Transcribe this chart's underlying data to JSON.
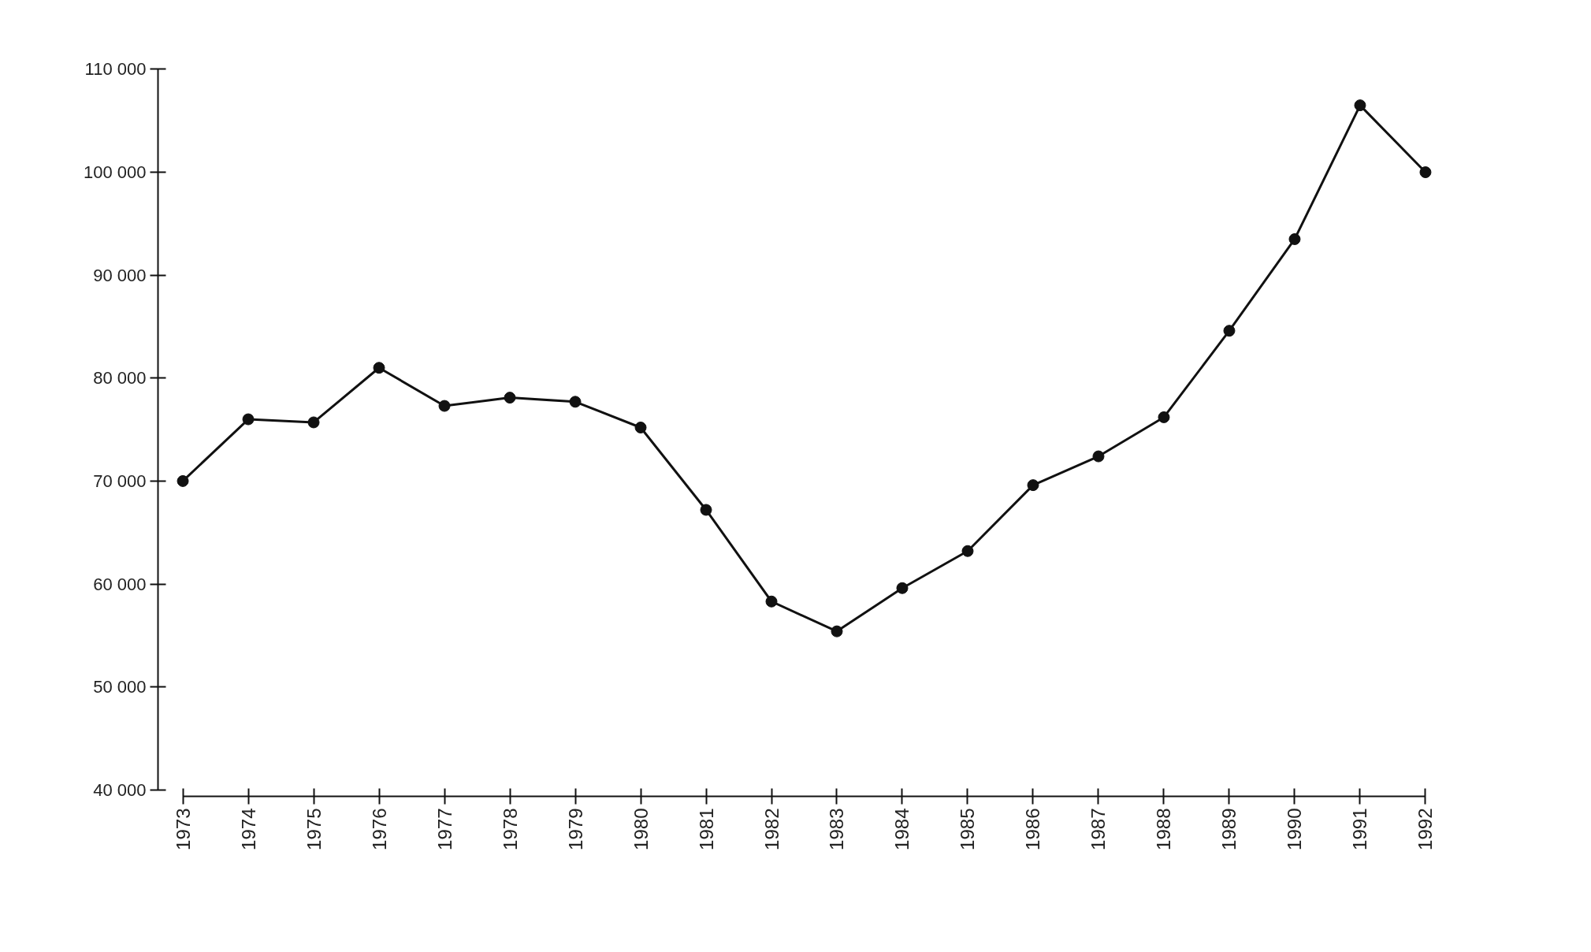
{
  "chart_data": {
    "type": "line",
    "x": [
      1973,
      1974,
      1975,
      1976,
      1977,
      1978,
      1979,
      1980,
      1981,
      1982,
      1983,
      1984,
      1985,
      1986,
      1987,
      1988,
      1989,
      1990,
      1991,
      1992
    ],
    "series": [
      {
        "color": "#111111",
        "values": [
          70000,
          76000,
          75700,
          81000,
          77300,
          78100,
          77700,
          75200,
          67200,
          58300,
          55400,
          59600,
          63200,
          69600,
          72400,
          76200,
          84600,
          93500,
          106500,
          100000
        ]
      }
    ],
    "xlim": [
      1973,
      1992
    ],
    "xticks": [
      1973,
      1974,
      1975,
      1976,
      1977,
      1978,
      1979,
      1980,
      1981,
      1982,
      1983,
      1984,
      1985,
      1986,
      1987,
      1988,
      1989,
      1990,
      1991,
      1992
    ],
    "ylim": [
      40000,
      110000
    ],
    "yticks": [
      {
        "value": 40000,
        "label": "40 000"
      },
      {
        "value": 50000,
        "label": "50 000"
      },
      {
        "value": 60000,
        "label": "60 000"
      },
      {
        "value": 70000,
        "label": "70 000"
      },
      {
        "value": 80000,
        "label": "80 000"
      },
      {
        "value": 90000,
        "label": "90 000"
      },
      {
        "value": 100000,
        "label": "100 000"
      },
      {
        "value": 110000,
        "label": "110 000"
      }
    ],
    "grid": false,
    "marker": "circle",
    "line_style": "solid"
  }
}
